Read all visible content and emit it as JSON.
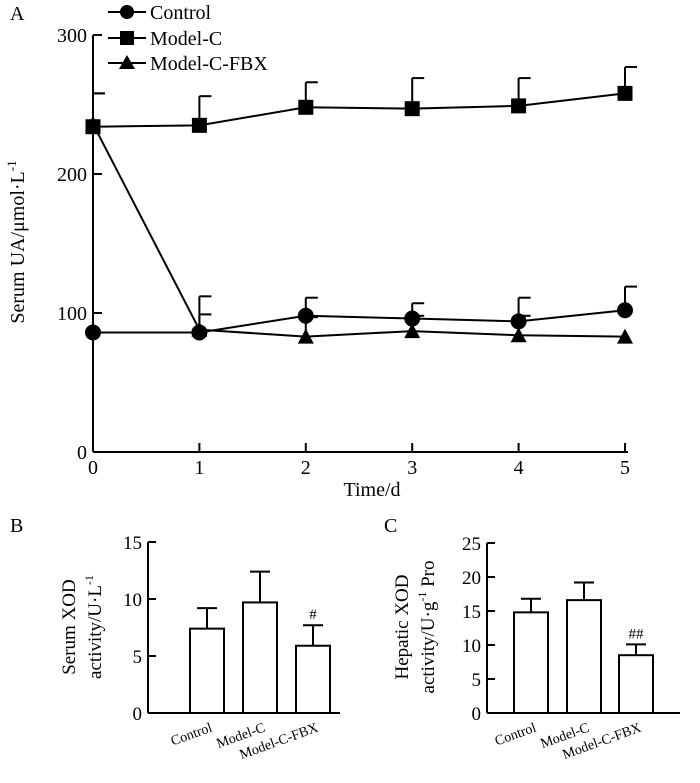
{
  "chart_data": [
    {
      "panel": "A",
      "type": "line",
      "xlabel": "Time/d",
      "ylabel_main": "Serum UA/μmol·L",
      "ylabel_sup": "-1",
      "x": [
        0,
        1,
        2,
        3,
        4,
        5
      ],
      "xlim": [
        0,
        5
      ],
      "ylim": [
        0,
        300
      ],
      "xticks": [
        "0",
        "1",
        "2",
        "3",
        "4",
        "5"
      ],
      "yticks": [
        "0",
        "100",
        "200",
        "300"
      ],
      "legend_position": "top-left",
      "series": [
        {
          "name": "Control",
          "marker": "circle",
          "values": [
            86,
            86,
            98,
            96,
            94,
            102
          ],
          "errors": [
            0,
            26,
            13,
            11,
            17,
            17
          ]
        },
        {
          "name": "Model-C",
          "marker": "square",
          "values": [
            234,
            235,
            248,
            247,
            249,
            258
          ],
          "errors": [
            24,
            21,
            18,
            22,
            20,
            19
          ]
        },
        {
          "name": "Model-C-FBX",
          "marker": "triangle",
          "values": [
            236,
            88,
            83,
            87,
            84,
            83
          ],
          "errors": [
            22,
            11,
            14,
            11,
            14,
            0
          ]
        }
      ]
    },
    {
      "panel": "B",
      "type": "bar",
      "ylabel_line1": "Serum XOD",
      "ylabel_line2": "activity/U·L",
      "ylabel_sup": "-1",
      "categories": [
        "Control",
        "Model-C",
        "Model-C-FBX"
      ],
      "values": [
        7.4,
        9.7,
        5.9
      ],
      "errors": [
        1.8,
        2.7,
        1.8
      ],
      "annotations": [
        "",
        "",
        "#"
      ],
      "ylim": [
        0,
        15
      ],
      "yticks": [
        "0",
        "5",
        "10",
        "15"
      ]
    },
    {
      "panel": "C",
      "type": "bar",
      "ylabel_line1": "Hepatic XOD",
      "ylabel_line2a": "activity/U·g",
      "ylabel_sup": "-1",
      "ylabel_line2b": " Pro",
      "categories": [
        "Control",
        "Model-C",
        "Model-C-FBX"
      ],
      "values": [
        14.8,
        16.6,
        8.5
      ],
      "errors": [
        2.0,
        2.6,
        1.6
      ],
      "annotations": [
        "",
        "",
        "##"
      ],
      "ylim": [
        0,
        25
      ],
      "yticks": [
        "0",
        "5",
        "10",
        "15",
        "20",
        "25"
      ]
    }
  ]
}
